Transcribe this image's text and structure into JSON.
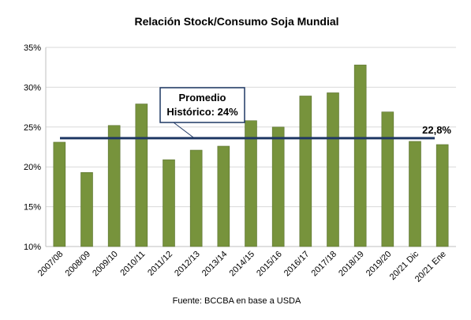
{
  "chart_data": {
    "type": "bar",
    "title": "Relación Stock/Consumo Soja Mundial",
    "categories": [
      "2007/08",
      "2008/09",
      "2009/10",
      "2010/11",
      "2011/12",
      "2012/13",
      "2013/14",
      "2014/15",
      "2015/16",
      "2016/17",
      "2017/18",
      "2018/19",
      "2019/20",
      "20/21 Dic",
      "20/21 Ene"
    ],
    "values": [
      23.1,
      19.3,
      25.2,
      27.9,
      20.9,
      22.1,
      22.6,
      25.8,
      25.0,
      28.9,
      29.3,
      32.8,
      26.9,
      23.2,
      22.8
    ],
    "ylim": [
      10,
      35
    ],
    "yticks": [
      10,
      15,
      20,
      25,
      30,
      35
    ],
    "ytick_labels": [
      "10%",
      "15%",
      "20%",
      "25%",
      "30%",
      "35%"
    ],
    "xlabel": "",
    "ylabel": "",
    "grid": true,
    "bar_color": "#77933c",
    "reference_line": {
      "value": 23.6,
      "color": "#1f3864"
    },
    "annotations": {
      "average_line1": "Promedio",
      "average_line2": "Histórico: 24%",
      "last_value": "22,8%"
    },
    "source": "Fuente: BCCBA en base a USDA"
  }
}
